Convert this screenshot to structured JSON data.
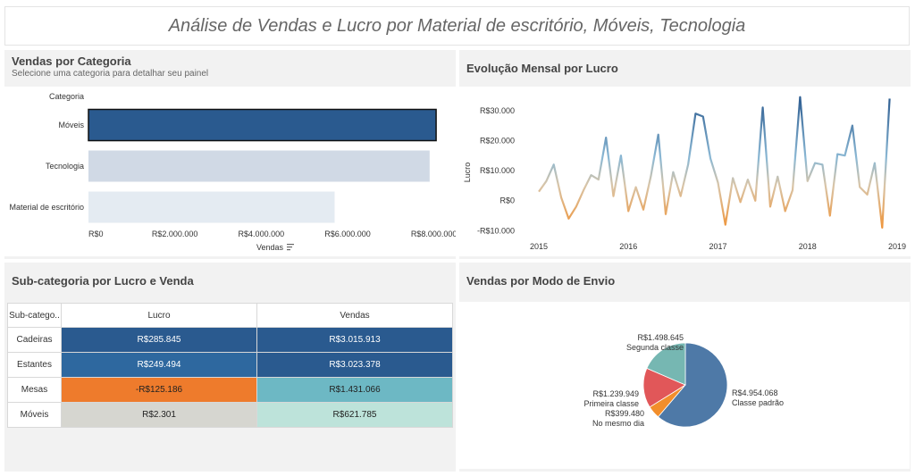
{
  "header": {
    "title": "Análise de Vendas e Lucro por Material de escritório, Móveis, Tecnologia"
  },
  "panel_category": {
    "title": "Vendas por Categoria",
    "subtitle": "Selecione uma categoria para detalhar seu painel",
    "column_header": "Categoria",
    "x_label": "Vendas",
    "sort_icon": "sort-descending-icon"
  },
  "panel_trend": {
    "title": "Evolução Mensal por Lucro",
    "y_label": "Lucro"
  },
  "panel_subcat": {
    "title": "Sub-categoria por Lucro e Venda",
    "headers": [
      "Sub-catego..",
      "Lucro",
      "Vendas"
    ],
    "rows": [
      {
        "name": "Cadeiras",
        "lucro": "R$285.845",
        "vendas": "R$3.015.913",
        "lucro_color": "#2a5a8f",
        "vendas_color": "#2a5a8f",
        "lucro_text": "#ffffff",
        "vendas_text": "#ffffff"
      },
      {
        "name": "Estantes",
        "lucro": "R$249.494",
        "vendas": "R$3.023.378",
        "lucro_color": "#2e689f",
        "vendas_color": "#2a5a8f",
        "lucro_text": "#ffffff",
        "vendas_text": "#ffffff"
      },
      {
        "name": "Mesas",
        "lucro": "-R$125.186",
        "vendas": "R$1.431.066",
        "lucro_color": "#ee7b2c",
        "vendas_color": "#6db8c4",
        "lucro_text": "#222222",
        "vendas_text": "#222222"
      },
      {
        "name": "Móveis",
        "lucro": "R$2.301",
        "vendas": "R$621.785",
        "lucro_color": "#d6d6d0",
        "vendas_color": "#bde3da",
        "lucro_text": "#222222",
        "vendas_text": "#222222"
      }
    ]
  },
  "panel_ship": {
    "title": "Vendas por Modo de Envio"
  },
  "chart_data": [
    {
      "type": "bar",
      "orientation": "horizontal",
      "title": "Vendas por Categoria",
      "xlabel": "Vendas",
      "ylabel": "Categoria",
      "categories": [
        "Móveis",
        "Tecnologia",
        "Material de escritório"
      ],
      "values": [
        8050000,
        7900000,
        5700000
      ],
      "xlim": [
        0,
        8400000
      ],
      "xticks": [
        0,
        2000000,
        4000000,
        6000000,
        8000000
      ],
      "xtick_labels": [
        "R$0",
        "R$2.000.000",
        "R$4.000.000",
        "R$6.000.000",
        "R$8.000.000"
      ],
      "colors": [
        "#2a5a8f",
        "#d0d9e5",
        "#e4ebf2"
      ],
      "selected": "Móveis"
    },
    {
      "type": "line",
      "title": "Evolução Mensal por Lucro",
      "ylabel": "Lucro",
      "x_start": 2015.0,
      "x_step_years": 0.08333,
      "values": [
        3000,
        6500,
        12000,
        1000,
        -6000,
        -2000,
        3500,
        8500,
        7000,
        21000,
        1500,
        15000,
        -3500,
        4500,
        -3000,
        8000,
        22000,
        -4500,
        9500,
        1500,
        12000,
        29000,
        28000,
        14000,
        6000,
        -8000,
        7500,
        -500,
        7000,
        0,
        31000,
        -2000,
        8000,
        -3500,
        3500,
        34500,
        6500,
        12500,
        12000,
        -5000,
        15500,
        15000,
        25000,
        4500,
        2000,
        12500,
        -9000,
        34000
      ],
      "ylim": [
        -12000,
        35000
      ],
      "yticks": [
        -10000,
        0,
        10000,
        20000,
        30000
      ],
      "ytick_labels": [
        "-R$10.000",
        "R$0",
        "R$10.000",
        "R$20.000",
        "R$30.000"
      ],
      "xticks": [
        2015,
        2016,
        2017,
        2018,
        2019
      ],
      "xtick_labels": [
        "2015",
        "2016",
        "2017",
        "2018",
        "2019"
      ]
    },
    {
      "type": "pie",
      "title": "Vendas por Modo de Envio",
      "slices": [
        {
          "name": "Classe padrão",
          "value": 4954068,
          "label": "R$4.954.068",
          "color": "#4e79a7"
        },
        {
          "name": "No mesmo dia",
          "value": 399480,
          "label": "R$399.480",
          "color": "#f28e2b"
        },
        {
          "name": "Primeira classe",
          "value": 1239949,
          "label": "R$1.239.949",
          "color": "#e15759"
        },
        {
          "name": "Segunda classe",
          "value": 1498645,
          "label": "R$1.498.645",
          "color": "#76b7b2"
        }
      ]
    }
  ]
}
